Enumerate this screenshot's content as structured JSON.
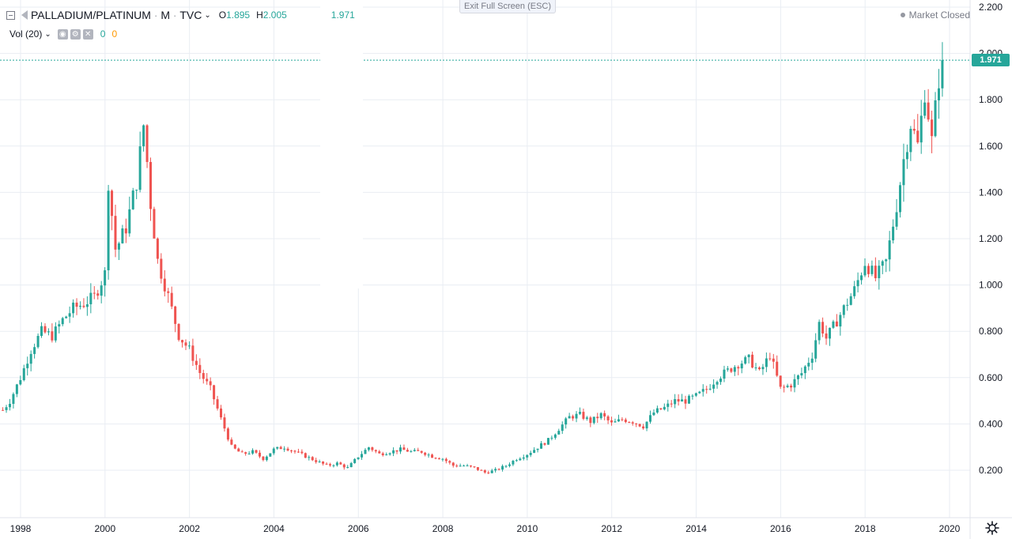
{
  "header": {
    "symbol": "PALLADIUM/PLATINUM",
    "interval": "M",
    "source": "TVC",
    "ohlc": [
      {
        "key": "O",
        "value": "1.895"
      },
      {
        "key": "H",
        "value": "2.005"
      },
      {
        "key": "",
        "value": "1.971"
      }
    ],
    "volume_label": "Vol (20)",
    "volume_values": [
      "0",
      "0"
    ]
  },
  "exit_fullscreen_label": "Exit Full Screen (ESC)",
  "market_status": "Market Closed",
  "colors": {
    "up": "#26a69a",
    "down": "#ef5350",
    "grid": "#e9edf3",
    "axis_text": "#131722"
  },
  "chart_data": {
    "type": "candlestick",
    "title": "",
    "xlabel": "",
    "ylabel": "",
    "ylim": [
      0,
      2.2
    ],
    "xlim": [
      1997.6,
      2020.6
    ],
    "grid": true,
    "y_ticks": [
      {
        "value": 0.2,
        "label": "0.200"
      },
      {
        "value": 0.4,
        "label": "0.400"
      },
      {
        "value": 0.6,
        "label": "0.600"
      },
      {
        "value": 0.8,
        "label": "0.800"
      },
      {
        "value": 1.0,
        "label": "1.000"
      },
      {
        "value": 1.2,
        "label": "1.200"
      },
      {
        "value": 1.4,
        "label": "1.400"
      },
      {
        "value": 1.6,
        "label": "1.600"
      },
      {
        "value": 1.8,
        "label": "1.800"
      },
      {
        "value": 2.0,
        "label": "2.000"
      },
      {
        "value": 2.2,
        "label": "2.200"
      }
    ],
    "x_ticks": [
      {
        "value": 1998,
        "label": "1998"
      },
      {
        "value": 2000,
        "label": "2000"
      },
      {
        "value": 2002,
        "label": "2002"
      },
      {
        "value": 2004,
        "label": "2004"
      },
      {
        "value": 2006,
        "label": "2006"
      },
      {
        "value": 2008,
        "label": "2008"
      },
      {
        "value": 2010,
        "label": "2010"
      },
      {
        "value": 2012,
        "label": "2012"
      },
      {
        "value": 2014,
        "label": "2014"
      },
      {
        "value": 2016,
        "label": "2016"
      },
      {
        "value": 2018,
        "label": "2018"
      },
      {
        "value": 2020,
        "label": "2020"
      }
    ],
    "last_price": {
      "value": 1.971,
      "label": "1.971"
    },
    "series_close": [
      [
        1997.58,
        0.46
      ],
      [
        1997.75,
        0.5
      ],
      [
        1998.0,
        0.6
      ],
      [
        1998.25,
        0.72
      ],
      [
        1998.5,
        0.8
      ],
      [
        1998.75,
        0.78
      ],
      [
        1999.0,
        0.85
      ],
      [
        1999.25,
        0.9
      ],
      [
        1999.5,
        0.92
      ],
      [
        1999.75,
        0.95
      ],
      [
        2000.0,
        1.05
      ],
      [
        2000.08,
        1.45
      ],
      [
        2000.25,
        1.15
      ],
      [
        2000.5,
        1.25
      ],
      [
        2000.75,
        1.45
      ],
      [
        2000.92,
        1.7
      ],
      [
        2001.08,
        1.35
      ],
      [
        2001.25,
        1.1
      ],
      [
        2001.5,
        0.95
      ],
      [
        2001.75,
        0.78
      ],
      [
        2002.0,
        0.72
      ],
      [
        2002.25,
        0.62
      ],
      [
        2002.5,
        0.55
      ],
      [
        2002.75,
        0.42
      ],
      [
        2003.0,
        0.3
      ],
      [
        2003.25,
        0.27
      ],
      [
        2003.5,
        0.28
      ],
      [
        2003.75,
        0.25
      ],
      [
        2004.0,
        0.29
      ],
      [
        2004.25,
        0.3
      ],
      [
        2004.5,
        0.28
      ],
      [
        2004.75,
        0.26
      ],
      [
        2005.0,
        0.24
      ],
      [
        2005.25,
        0.22
      ],
      [
        2005.5,
        0.23
      ],
      [
        2005.75,
        0.21
      ],
      [
        2006.0,
        0.26
      ],
      [
        2006.25,
        0.3
      ],
      [
        2006.5,
        0.27
      ],
      [
        2006.75,
        0.28
      ],
      [
        2007.0,
        0.29
      ],
      [
        2007.25,
        0.28
      ],
      [
        2007.5,
        0.28
      ],
      [
        2007.75,
        0.26
      ],
      [
        2008.0,
        0.25
      ],
      [
        2008.25,
        0.22
      ],
      [
        2008.5,
        0.22
      ],
      [
        2008.75,
        0.21
      ],
      [
        2009.0,
        0.19
      ],
      [
        2009.25,
        0.2
      ],
      [
        2009.5,
        0.22
      ],
      [
        2009.75,
        0.25
      ],
      [
        2010.0,
        0.27
      ],
      [
        2010.25,
        0.3
      ],
      [
        2010.5,
        0.33
      ],
      [
        2010.75,
        0.38
      ],
      [
        2011.0,
        0.43
      ],
      [
        2011.25,
        0.44
      ],
      [
        2011.5,
        0.41
      ],
      [
        2011.75,
        0.44
      ],
      [
        2012.0,
        0.4
      ],
      [
        2012.25,
        0.42
      ],
      [
        2012.5,
        0.41
      ],
      [
        2012.75,
        0.39
      ],
      [
        2013.0,
        0.45
      ],
      [
        2013.25,
        0.47
      ],
      [
        2013.5,
        0.5
      ],
      [
        2013.75,
        0.5
      ],
      [
        2014.0,
        0.52
      ],
      [
        2014.25,
        0.55
      ],
      [
        2014.5,
        0.6
      ],
      [
        2014.75,
        0.63
      ],
      [
        2015.0,
        0.66
      ],
      [
        2015.25,
        0.68
      ],
      [
        2015.5,
        0.62
      ],
      [
        2015.75,
        0.7
      ],
      [
        2016.0,
        0.55
      ],
      [
        2016.25,
        0.57
      ],
      [
        2016.5,
        0.62
      ],
      [
        2016.75,
        0.7
      ],
      [
        2016.92,
        0.84
      ],
      [
        2017.08,
        0.77
      ],
      [
        2017.25,
        0.82
      ],
      [
        2017.5,
        0.9
      ],
      [
        2017.75,
        0.98
      ],
      [
        2018.0,
        1.1
      ],
      [
        2018.25,
        1.03
      ],
      [
        2018.5,
        1.1
      ],
      [
        2018.75,
        1.35
      ],
      [
        2018.92,
        1.55
      ],
      [
        2019.08,
        1.7
      ],
      [
        2019.25,
        1.6
      ],
      [
        2019.42,
        1.85
      ],
      [
        2019.58,
        1.62
      ],
      [
        2019.75,
        1.9
      ],
      [
        2019.83,
        1.971
      ]
    ]
  }
}
